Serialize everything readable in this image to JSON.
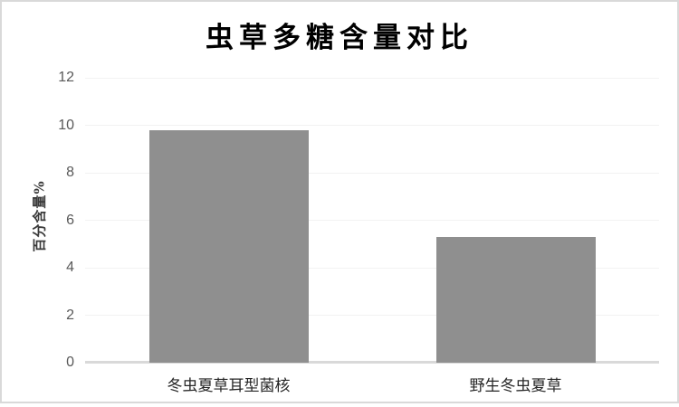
{
  "page": {
    "background_color": "#ffffff",
    "border_color": "#d9d9d9"
  },
  "chart_data": {
    "type": "bar",
    "title": "虫草多糖含量对比",
    "xlabel": "",
    "ylabel": "百分含量%",
    "categories": [
      "冬虫夏草耳型菌核",
      "野生冬虫夏草"
    ],
    "values": [
      9.8,
      5.3
    ],
    "ylim": [
      0,
      12
    ],
    "ytick_step": 2,
    "ytick_labels": [
      "0",
      "2",
      "4",
      "6",
      "8",
      "10",
      "12"
    ],
    "grid": "horizontal",
    "legend_position": "none",
    "bar_color": "#8f8f8f",
    "gridline_color": "#f2f2f2",
    "axis_line_color": "#d9d9d9",
    "tick_label_color": "#595959",
    "category_label_color": "#262626",
    "title_color": "#000000"
  }
}
